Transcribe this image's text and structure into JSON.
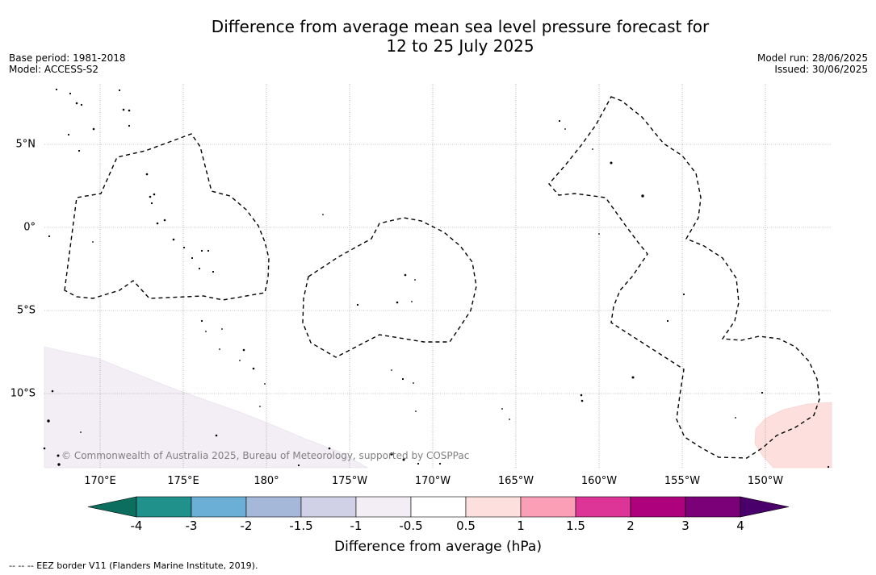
{
  "title_line1": "Difference from average mean sea level pressure forecast for",
  "title_line2": "12 to 25 July 2025",
  "base_period": "Base period: 1981-2018",
  "model": "Model: ACCESS-S2",
  "model_run": "Model run: 28/06/2025",
  "issued": "Issued: 30/06/2025",
  "copyright": "© Commonwealth of Australia 2025, Bureau of Meteorology, supported by COSPPac",
  "lon_labels": [
    "170°E",
    "175°E",
    "180°",
    "175°W",
    "170°W",
    "165°W",
    "160°W",
    "155°W",
    "150°W"
  ],
  "lat_labels": [
    "5°N",
    "0°",
    "5°S",
    "10°S"
  ],
  "colorbar": {
    "tick_labels": [
      "-4",
      "-3",
      "-2",
      "-1.5",
      "-1",
      "-0.5",
      "0.5",
      "1",
      "1.5",
      "2",
      "3",
      "4"
    ],
    "colors": [
      "#0c6e5e",
      "#21918c",
      "#6baed6",
      "#a6b8d9",
      "#d0d1e6",
      "#f3eef5",
      "#ffffff",
      "#fde0dd",
      "#fa9fb5",
      "#dd3497",
      "#ae017e",
      "#7a0177",
      "#49006a"
    ],
    "label": "Difference from average (hPa)"
  },
  "footer": "--  --  -- EEZ border V11 (Flanders Marine Institute, 2019)."
}
